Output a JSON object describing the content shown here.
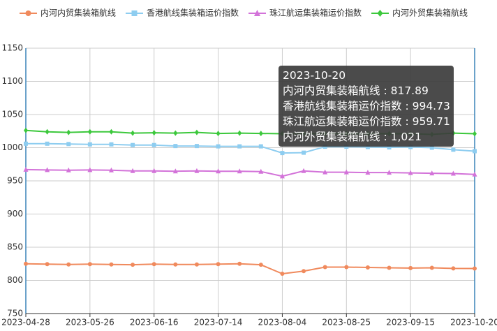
{
  "chart_data": {
    "type": "line",
    "categories": [
      "2023-04-28",
      null,
      null,
      "2023-05-26",
      null,
      null,
      "2023-06-16",
      null,
      null,
      "2023-07-14",
      null,
      null,
      "2023-08-04",
      null,
      null,
      "2023-08-25",
      null,
      null,
      "2023-09-15",
      null,
      null,
      "2023-10-20"
    ],
    "series": [
      {
        "name": "内河内贸集装箱航线",
        "color": "#f08a5d",
        "symbol": "circle",
        "values": [
          825,
          824.5,
          824,
          824.5,
          824,
          823.5,
          824.5,
          824,
          824,
          824.5,
          825,
          823.5,
          810,
          814,
          820,
          820,
          819.5,
          819,
          818.5,
          819,
          818,
          817.89
        ]
      },
      {
        "name": "香港航线集装箱运价指数",
        "color": "#8ecdf0",
        "symbol": "square",
        "values": [
          1006,
          1006,
          1005.5,
          1005,
          1005,
          1004,
          1004,
          1002.5,
          1002.5,
          1002,
          1002,
          1002,
          992,
          992.5,
          1001.5,
          1001.5,
          1001,
          1000.5,
          1001,
          1000,
          997,
          994.73
        ]
      },
      {
        "name": "珠江航运集装箱运价指数",
        "color": "#d373d9",
        "symbol": "triangle",
        "values": [
          967,
          966.5,
          966,
          966.5,
          966,
          965,
          965,
          964.5,
          965,
          964.5,
          964.5,
          964,
          957,
          965,
          963,
          963,
          962.5,
          962.5,
          962,
          961.5,
          961,
          959.71
        ]
      },
      {
        "name": "内河外贸集装箱航线",
        "color": "#3cc83c",
        "symbol": "diamond",
        "values": [
          1026,
          1024,
          1023,
          1024,
          1024,
          1022,
          1022.5,
          1022,
          1023,
          1021.5,
          1022,
          1021.5,
          1021,
          1021,
          1021,
          1021,
          1021,
          1021,
          1021,
          1020,
          1022,
          1021
        ],
        "value_labels": [
          null,
          null,
          null,
          null,
          null,
          null,
          null,
          null,
          null,
          null,
          null,
          null,
          null,
          null,
          null,
          null,
          null,
          null,
          null,
          null,
          null,
          "1,021"
        ]
      }
    ],
    "ylim": [
      750,
      1150
    ],
    "yticks": [
      750,
      800,
      850,
      900,
      950,
      1000,
      1050,
      1100,
      1150
    ],
    "grid": true,
    "legend": "top",
    "tooltip_index": 21
  }
}
